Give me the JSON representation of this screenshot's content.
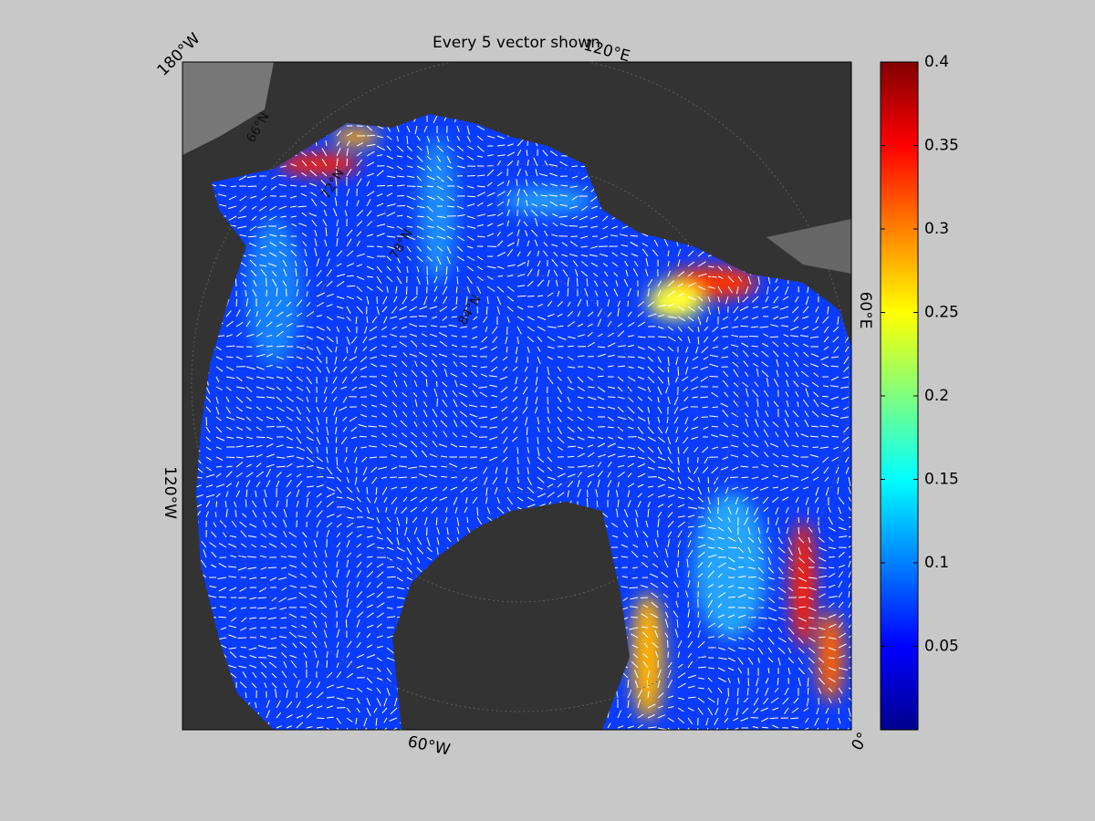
{
  "title": "Every 5 vector shown",
  "longitude_labels": [
    "180°W",
    "120°E",
    "60°E",
    "0°",
    "60°W",
    "120°W"
  ],
  "latitude_labels": [
    "66°N",
    "72°N",
    "78°N",
    "84°N"
  ],
  "colorbar": {
    "lim": [
      0,
      0.4
    ],
    "ticks": [
      0.05,
      0.1,
      0.15,
      0.2,
      0.25,
      0.3,
      0.35,
      0.4
    ]
  }
}
